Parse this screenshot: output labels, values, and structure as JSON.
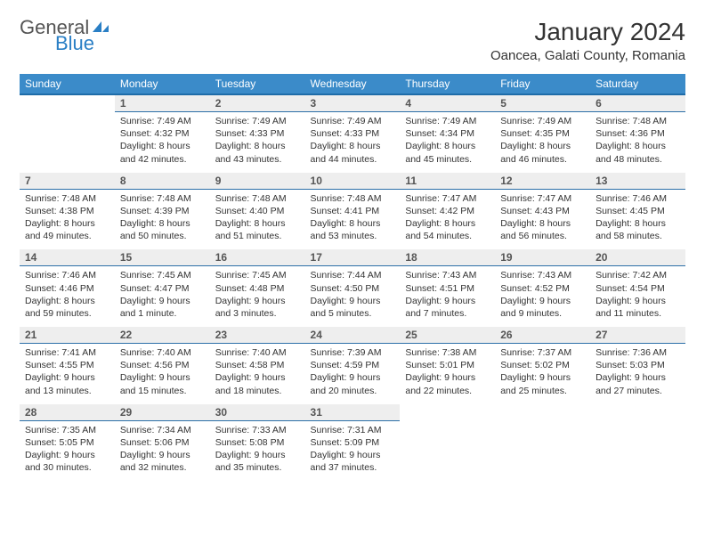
{
  "logo": {
    "line1a": "General",
    "line1b_icon": "◤",
    "line2": "Blue"
  },
  "title": "January 2024",
  "location": "Oancea, Galati County, Romania",
  "colors": {
    "header_bg": "#3b8bc9",
    "header_border": "#1e6ca8",
    "daynum_bg": "#eeeeee",
    "cell_border": "#2c6fa8"
  },
  "day_names": [
    "Sunday",
    "Monday",
    "Tuesday",
    "Wednesday",
    "Thursday",
    "Friday",
    "Saturday"
  ],
  "weeks": [
    {
      "nums": [
        "",
        "1",
        "2",
        "3",
        "4",
        "5",
        "6"
      ],
      "cells": [
        "",
        "Sunrise: 7:49 AM\nSunset: 4:32 PM\nDaylight: 8 hours and 42 minutes.",
        "Sunrise: 7:49 AM\nSunset: 4:33 PM\nDaylight: 8 hours and 43 minutes.",
        "Sunrise: 7:49 AM\nSunset: 4:33 PM\nDaylight: 8 hours and 44 minutes.",
        "Sunrise: 7:49 AM\nSunset: 4:34 PM\nDaylight: 8 hours and 45 minutes.",
        "Sunrise: 7:49 AM\nSunset: 4:35 PM\nDaylight: 8 hours and 46 minutes.",
        "Sunrise: 7:48 AM\nSunset: 4:36 PM\nDaylight: 8 hours and 48 minutes."
      ]
    },
    {
      "nums": [
        "7",
        "8",
        "9",
        "10",
        "11",
        "12",
        "13"
      ],
      "cells": [
        "Sunrise: 7:48 AM\nSunset: 4:38 PM\nDaylight: 8 hours and 49 minutes.",
        "Sunrise: 7:48 AM\nSunset: 4:39 PM\nDaylight: 8 hours and 50 minutes.",
        "Sunrise: 7:48 AM\nSunset: 4:40 PM\nDaylight: 8 hours and 51 minutes.",
        "Sunrise: 7:48 AM\nSunset: 4:41 PM\nDaylight: 8 hours and 53 minutes.",
        "Sunrise: 7:47 AM\nSunset: 4:42 PM\nDaylight: 8 hours and 54 minutes.",
        "Sunrise: 7:47 AM\nSunset: 4:43 PM\nDaylight: 8 hours and 56 minutes.",
        "Sunrise: 7:46 AM\nSunset: 4:45 PM\nDaylight: 8 hours and 58 minutes."
      ]
    },
    {
      "nums": [
        "14",
        "15",
        "16",
        "17",
        "18",
        "19",
        "20"
      ],
      "cells": [
        "Sunrise: 7:46 AM\nSunset: 4:46 PM\nDaylight: 8 hours and 59 minutes.",
        "Sunrise: 7:45 AM\nSunset: 4:47 PM\nDaylight: 9 hours and 1 minute.",
        "Sunrise: 7:45 AM\nSunset: 4:48 PM\nDaylight: 9 hours and 3 minutes.",
        "Sunrise: 7:44 AM\nSunset: 4:50 PM\nDaylight: 9 hours and 5 minutes.",
        "Sunrise: 7:43 AM\nSunset: 4:51 PM\nDaylight: 9 hours and 7 minutes.",
        "Sunrise: 7:43 AM\nSunset: 4:52 PM\nDaylight: 9 hours and 9 minutes.",
        "Sunrise: 7:42 AM\nSunset: 4:54 PM\nDaylight: 9 hours and 11 minutes."
      ]
    },
    {
      "nums": [
        "21",
        "22",
        "23",
        "24",
        "25",
        "26",
        "27"
      ],
      "cells": [
        "Sunrise: 7:41 AM\nSunset: 4:55 PM\nDaylight: 9 hours and 13 minutes.",
        "Sunrise: 7:40 AM\nSunset: 4:56 PM\nDaylight: 9 hours and 15 minutes.",
        "Sunrise: 7:40 AM\nSunset: 4:58 PM\nDaylight: 9 hours and 18 minutes.",
        "Sunrise: 7:39 AM\nSunset: 4:59 PM\nDaylight: 9 hours and 20 minutes.",
        "Sunrise: 7:38 AM\nSunset: 5:01 PM\nDaylight: 9 hours and 22 minutes.",
        "Sunrise: 7:37 AM\nSunset: 5:02 PM\nDaylight: 9 hours and 25 minutes.",
        "Sunrise: 7:36 AM\nSunset: 5:03 PM\nDaylight: 9 hours and 27 minutes."
      ]
    },
    {
      "nums": [
        "28",
        "29",
        "30",
        "31",
        "",
        "",
        ""
      ],
      "cells": [
        "Sunrise: 7:35 AM\nSunset: 5:05 PM\nDaylight: 9 hours and 30 minutes.",
        "Sunrise: 7:34 AM\nSunset: 5:06 PM\nDaylight: 9 hours and 32 minutes.",
        "Sunrise: 7:33 AM\nSunset: 5:08 PM\nDaylight: 9 hours and 35 minutes.",
        "Sunrise: 7:31 AM\nSunset: 5:09 PM\nDaylight: 9 hours and 37 minutes.",
        "",
        "",
        ""
      ]
    }
  ]
}
